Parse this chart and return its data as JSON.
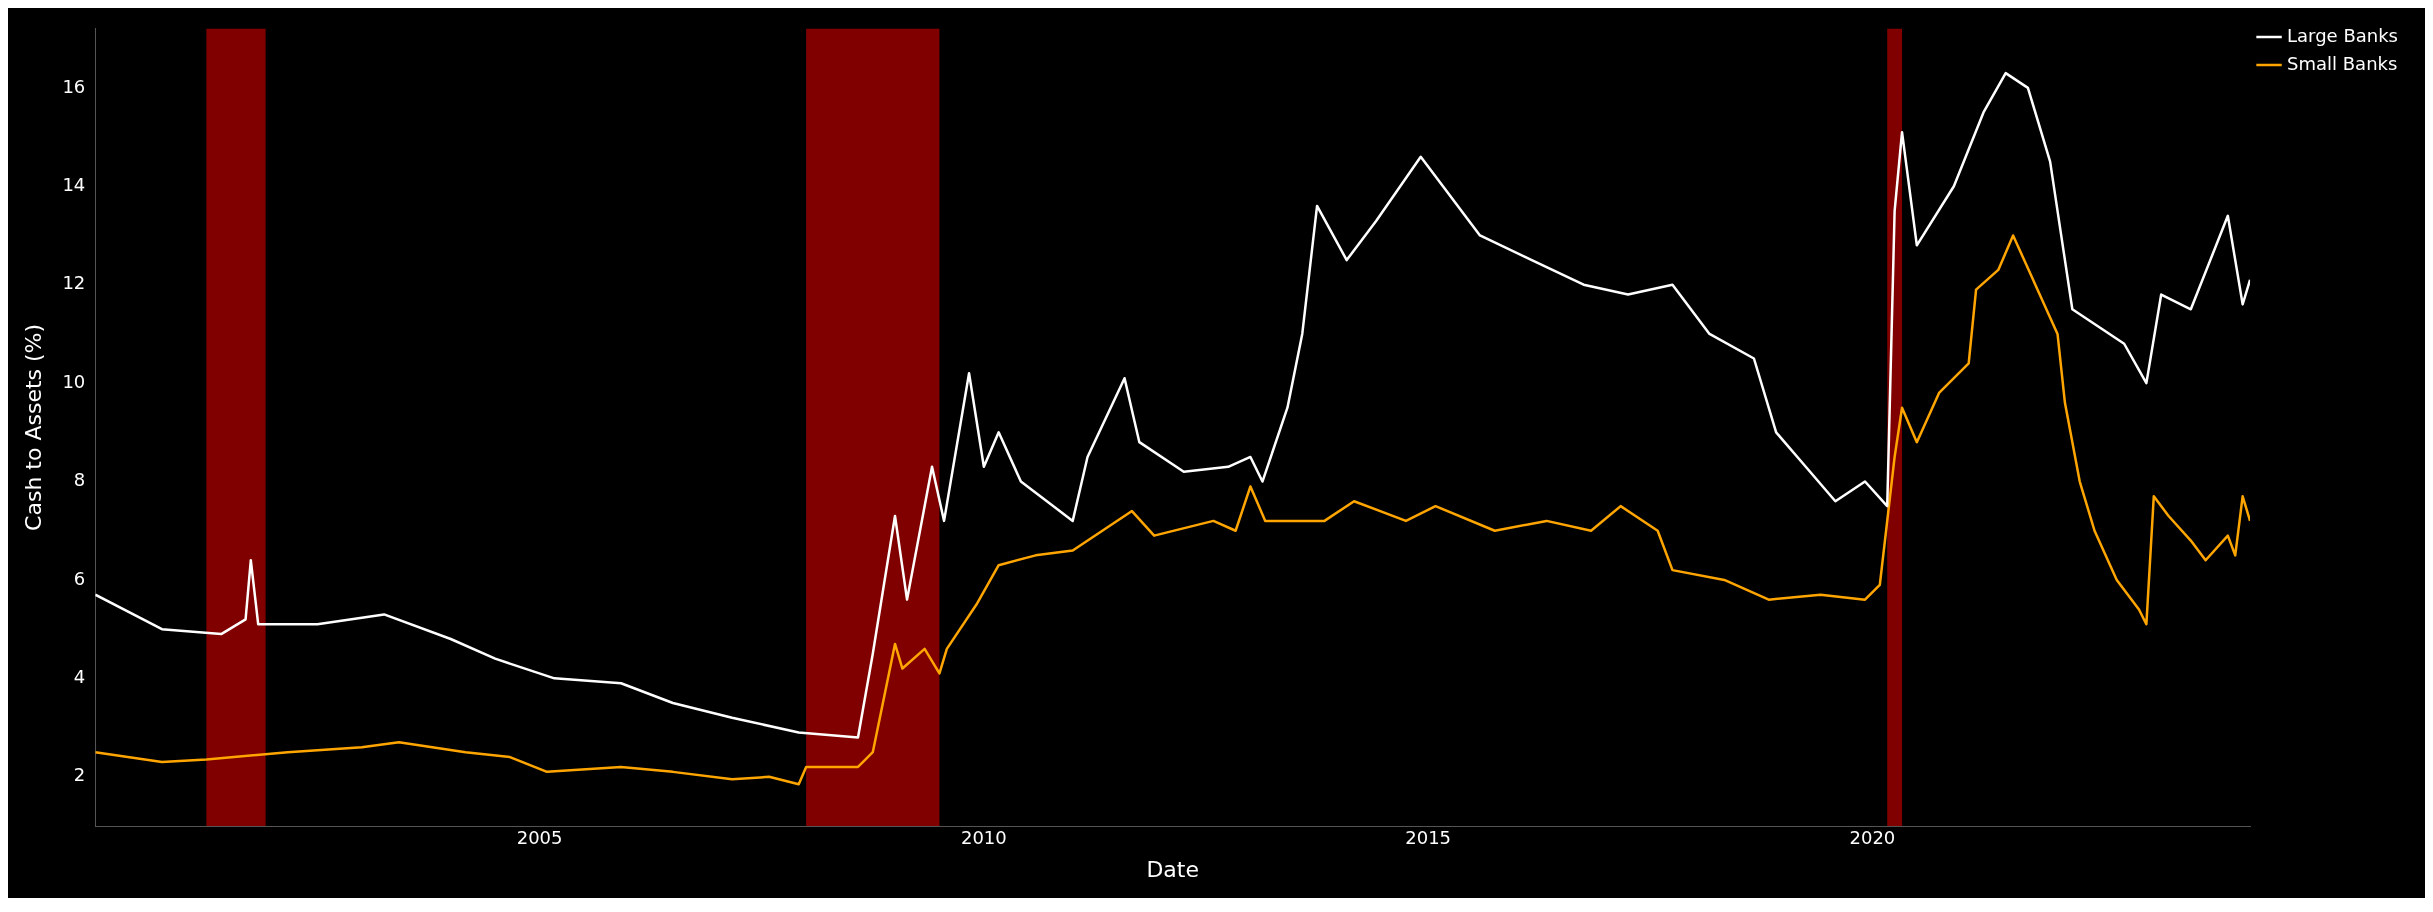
{
  "chart_data": {
    "type": "line",
    "xlabel": "Date",
    "ylabel": "Cash to Assets (%)",
    "xlim": [
      "2000-01",
      "2024-04"
    ],
    "ylim": [
      1,
      17.2
    ],
    "xticks": [
      "2005",
      "2010",
      "2015",
      "2020"
    ],
    "yticks": [
      2,
      4,
      6,
      8,
      10,
      12,
      14,
      16
    ],
    "grid": false,
    "legend": "top right",
    "marker": "none",
    "line_style": "solid",
    "bands": [
      {
        "axis": "x",
        "from": "2001-04",
        "to": "2001-12",
        "color": "#800000"
      },
      {
        "axis": "x",
        "from": "2008-01",
        "to": "2009-07",
        "color": "#800000"
      },
      {
        "axis": "x",
        "from": "2020-03",
        "to": "2020-05",
        "color": "#800000"
      }
    ],
    "series": [
      {
        "name": "Large Banks",
        "color": "#ffffff",
        "x": [
          "2000-01",
          "2000-10",
          "2001-06",
          "2001-09-10",
          "2001-10",
          "2001-11",
          "2002-07",
          "2003-04",
          "2004-01",
          "2004-07",
          "2005-03",
          "2005-12",
          "2006-07",
          "2007-03",
          "2007-12",
          "2008-08",
          "2008-10",
          "2009-01",
          "2009-02-20",
          "2009-06",
          "2009-07-20",
          "2009-11",
          "2010-01",
          "2010-03",
          "2010-06",
          "2011-01",
          "2011-03",
          "2011-08",
          "2011-10",
          "2012-04",
          "2012-10",
          "2013-01",
          "2013-02-20",
          "2013-06",
          "2013-08",
          "2013-10",
          "2014-02",
          "2014-06",
          "2014-12",
          "2015-03",
          "2015-08",
          "2016-03",
          "2016-10",
          "2017-04",
          "2017-10",
          "2018-03",
          "2018-09",
          "2018-12",
          "2019-04",
          "2019-08",
          "2019-12",
          "2020-03",
          "2020-04",
          "2020-05",
          "2020-07",
          "2020-12",
          "2021-04",
          "2021-07",
          "2021-10",
          "2022-01",
          "2022-04",
          "2022-11",
          "2023-02",
          "2023-04",
          "2023-08",
          "2024-01",
          "2024-03",
          "2024-04"
        ],
        "values": [
          5.7,
          5.0,
          4.9,
          5.2,
          6.4,
          5.1,
          5.1,
          5.3,
          4.8,
          4.4,
          4.0,
          3.9,
          3.5,
          3.2,
          2.9,
          2.8,
          4.5,
          7.3,
          5.6,
          8.3,
          7.2,
          10.2,
          8.3,
          9.0,
          8.0,
          7.2,
          8.5,
          10.1,
          8.8,
          8.2,
          8.3,
          8.5,
          8.0,
          9.5,
          11.0,
          13.6,
          12.5,
          13.3,
          14.6,
          14.0,
          13.0,
          12.5,
          12.0,
          11.8,
          12.0,
          11.0,
          10.5,
          9.0,
          8.3,
          7.6,
          8.0,
          7.5,
          13.5,
          15.1,
          12.8,
          14.0,
          15.5,
          16.3,
          16.0,
          14.5,
          11.5,
          10.8,
          10.0,
          11.8,
          11.5,
          13.4,
          11.6,
          12.1
        ]
      },
      {
        "name": "Small Banks",
        "color": "#ffa500",
        "x": [
          "2000-01",
          "2000-10",
          "2001-04",
          "2002-03",
          "2003-01",
          "2003-06",
          "2004-03",
          "2004-09",
          "2005-02",
          "2005-12",
          "2006-07",
          "2007-03",
          "2007-08",
          "2007-12",
          "2008-01",
          "2008-08",
          "2008-10",
          "2009-01",
          "2009-02",
          "2009-05",
          "2009-07",
          "2009-08",
          "2009-12",
          "2010-03",
          "2010-08",
          "2011-01",
          "2011-05",
          "2011-09",
          "2011-12",
          "2012-08",
          "2012-11",
          "2013-01",
          "2013-03",
          "2013-11",
          "2014-03",
          "2014-10",
          "2015-02",
          "2015-10",
          "2016-05",
          "2016-11",
          "2017-03",
          "2017-08",
          "2017-10",
          "2018-05",
          "2018-11",
          "2019-06",
          "2019-12",
          "2020-02",
          "2020-04",
          "2020-05",
          "2020-07",
          "2020-10",
          "2021-02",
          "2021-03",
          "2021-06",
          "2021-08",
          "2021-11",
          "2022-02",
          "2022-03",
          "2022-05",
          "2022-07",
          "2022-10",
          "2023-01",
          "2023-02",
          "2023-03",
          "2023-05",
          "2023-08",
          "2023-10",
          "2024-01",
          "2024-02",
          "2024-03",
          "2024-04"
        ],
        "values": [
          2.5,
          2.3,
          2.35,
          2.5,
          2.6,
          2.7,
          2.5,
          2.4,
          2.1,
          2.2,
          2.1,
          1.95,
          2.0,
          1.85,
          2.2,
          2.2,
          2.5,
          4.7,
          4.2,
          4.6,
          4.1,
          4.6,
          5.5,
          6.3,
          6.5,
          6.6,
          7.0,
          7.4,
          6.9,
          7.2,
          7.0,
          7.9,
          7.2,
          7.2,
          7.6,
          7.2,
          7.5,
          7.0,
          7.2,
          7.0,
          7.5,
          7.0,
          6.2,
          6.0,
          5.6,
          5.7,
          5.6,
          5.9,
          8.5,
          9.5,
          8.8,
          9.8,
          10.4,
          11.9,
          12.3,
          13.0,
          12.0,
          11.0,
          9.6,
          8.0,
          7.0,
          6.0,
          5.4,
          5.1,
          7.7,
          7.3,
          6.8,
          6.4,
          6.9,
          6.5,
          7.7,
          7.2
        ]
      }
    ]
  }
}
